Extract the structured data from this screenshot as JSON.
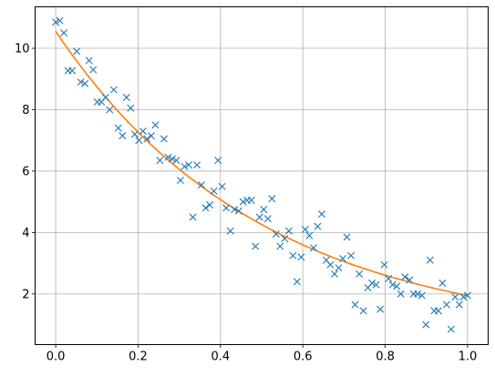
{
  "chart_data": {
    "type": "scatter",
    "title": "",
    "xlabel": "",
    "ylabel": "",
    "xlim": [
      -0.05,
      1.05
    ],
    "ylim": [
      0.35,
      11.35
    ],
    "grid": true,
    "xticks": [
      0.0,
      0.2,
      0.4,
      0.6,
      0.8,
      1.0
    ],
    "xtick_labels": [
      "0.0",
      "0.2",
      "0.4",
      "0.6",
      "0.8",
      "1.0"
    ],
    "yticks": [
      2,
      4,
      6,
      8,
      10
    ],
    "ytick_labels": [
      "2",
      "4",
      "6",
      "8",
      "10"
    ],
    "colors": {
      "scatter": "#1f77b4",
      "fit": "#ff7f0e",
      "grid": "#b0b0b0",
      "axes": "#000000"
    },
    "series": [
      {
        "type": "scatter",
        "marker": "x",
        "points": [
          [
            0.0,
            10.85
          ],
          [
            0.01,
            10.9
          ],
          [
            0.02,
            10.5
          ],
          [
            0.03,
            9.27
          ],
          [
            0.04,
            9.27
          ],
          [
            0.051,
            9.9
          ],
          [
            0.061,
            8.9
          ],
          [
            0.071,
            8.85
          ],
          [
            0.081,
            9.6
          ],
          [
            0.091,
            9.3
          ],
          [
            0.101,
            8.25
          ],
          [
            0.111,
            8.25
          ],
          [
            0.121,
            8.4
          ],
          [
            0.131,
            8.0
          ],
          [
            0.141,
            8.65
          ],
          [
            0.152,
            7.4
          ],
          [
            0.162,
            7.15
          ],
          [
            0.172,
            8.4
          ],
          [
            0.182,
            8.05
          ],
          [
            0.192,
            7.2
          ],
          [
            0.202,
            7.0
          ],
          [
            0.212,
            7.3
          ],
          [
            0.222,
            7.05
          ],
          [
            0.232,
            7.15
          ],
          [
            0.242,
            7.5
          ],
          [
            0.253,
            6.35
          ],
          [
            0.263,
            7.05
          ],
          [
            0.273,
            6.45
          ],
          [
            0.283,
            6.4
          ],
          [
            0.293,
            6.35
          ],
          [
            0.303,
            5.7
          ],
          [
            0.313,
            6.15
          ],
          [
            0.323,
            6.2
          ],
          [
            0.333,
            4.5
          ],
          [
            0.343,
            6.2
          ],
          [
            0.354,
            5.55
          ],
          [
            0.364,
            4.8
          ],
          [
            0.374,
            4.9
          ],
          [
            0.384,
            5.35
          ],
          [
            0.394,
            6.35
          ],
          [
            0.404,
            5.5
          ],
          [
            0.414,
            4.8
          ],
          [
            0.424,
            4.05
          ],
          [
            0.434,
            4.75
          ],
          [
            0.444,
            4.7
          ],
          [
            0.455,
            5.0
          ],
          [
            0.465,
            5.05
          ],
          [
            0.475,
            5.05
          ],
          [
            0.485,
            3.55
          ],
          [
            0.495,
            4.5
          ],
          [
            0.505,
            4.75
          ],
          [
            0.515,
            4.45
          ],
          [
            0.525,
            5.1
          ],
          [
            0.535,
            3.95
          ],
          [
            0.545,
            3.55
          ],
          [
            0.556,
            3.8
          ],
          [
            0.566,
            4.05
          ],
          [
            0.576,
            3.25
          ],
          [
            0.586,
            2.4
          ],
          [
            0.596,
            3.2
          ],
          [
            0.606,
            4.1
          ],
          [
            0.616,
            3.9
          ],
          [
            0.626,
            3.5
          ],
          [
            0.636,
            4.2
          ],
          [
            0.646,
            4.6
          ],
          [
            0.657,
            3.1
          ],
          [
            0.667,
            2.95
          ],
          [
            0.677,
            2.65
          ],
          [
            0.687,
            2.85
          ],
          [
            0.697,
            3.15
          ],
          [
            0.707,
            3.85
          ],
          [
            0.717,
            3.25
          ],
          [
            0.727,
            1.65
          ],
          [
            0.737,
            2.65
          ],
          [
            0.747,
            1.45
          ],
          [
            0.758,
            2.2
          ],
          [
            0.768,
            2.35
          ],
          [
            0.778,
            2.3
          ],
          [
            0.788,
            1.5
          ],
          [
            0.798,
            2.95
          ],
          [
            0.808,
            2.5
          ],
          [
            0.818,
            2.3
          ],
          [
            0.828,
            2.25
          ],
          [
            0.838,
            2.0
          ],
          [
            0.848,
            2.55
          ],
          [
            0.859,
            2.45
          ],
          [
            0.869,
            2.0
          ],
          [
            0.879,
            2.0
          ],
          [
            0.889,
            1.95
          ],
          [
            0.899,
            1.0
          ],
          [
            0.909,
            3.1
          ],
          [
            0.919,
            1.45
          ],
          [
            0.929,
            1.45
          ],
          [
            0.939,
            2.35
          ],
          [
            0.949,
            1.65
          ],
          [
            0.96,
            0.85
          ],
          [
            0.97,
            1.9
          ],
          [
            0.98,
            1.65
          ],
          [
            0.99,
            1.9
          ],
          [
            1.0,
            1.95
          ]
        ]
      },
      {
        "type": "line",
        "x_range": [
          0,
          1
        ],
        "function": "exp_decay",
        "params": {
          "a": 9.95,
          "k": 2.0,
          "c": 0.6
        },
        "samples": 101
      }
    ]
  }
}
